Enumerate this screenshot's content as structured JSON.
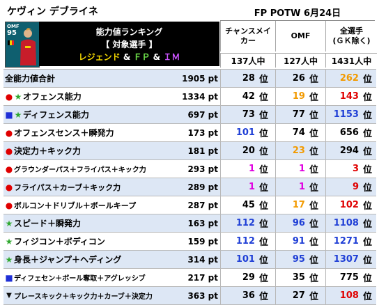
{
  "player_name": "ケヴィン デブライネ",
  "event_title": "FP POTW 6月24日",
  "card": {
    "position": "OMF",
    "overall": "95",
    "flag": "belgium-flag"
  },
  "panel": {
    "line1": "能力値ランキング",
    "line2": "【 対象選手 】",
    "line3_legend": "レジェンド",
    "line3_amp1": " & ",
    "line3_fp": "ＦＰ",
    "line3_amp2": " & ",
    "line3_im": "ＩＭ"
  },
  "columns": [
    {
      "header": "チャンスメイ\nカー",
      "count": "137人中"
    },
    {
      "header": "OMF",
      "count": "127人中"
    },
    {
      "header": "全選手\n(ＧＫ除く)",
      "count": "1431人中"
    }
  ],
  "rank_unit": "位",
  "rows": [
    {
      "marker": "",
      "label": "全能力値合計",
      "points": "1905 pt",
      "ranks": [
        "28",
        "26",
        "262"
      ],
      "colors": [
        "black",
        "black",
        "orange"
      ]
    },
    {
      "marker": "circle-star",
      "label": "オフェンス能力",
      "points": "1334 pt",
      "ranks": [
        "42",
        "19",
        "143"
      ],
      "colors": [
        "black",
        "orange",
        "red"
      ]
    },
    {
      "marker": "square-star",
      "label": "ディフェンス能力",
      "points": "697 pt",
      "ranks": [
        "73",
        "77",
        "1153"
      ],
      "colors": [
        "black",
        "black",
        "blue"
      ]
    },
    {
      "marker": "circle",
      "label": "オフェンスセンス＋瞬発力",
      "points": "173 pt",
      "ranks": [
        "101",
        "74",
        "656"
      ],
      "colors": [
        "blue",
        "black",
        "black"
      ]
    },
    {
      "marker": "circle",
      "label": "決定力＋キック力",
      "points": "181 pt",
      "ranks": [
        "20",
        "23",
        "294"
      ],
      "colors": [
        "black",
        "orange",
        "black"
      ]
    },
    {
      "marker": "circle",
      "label": "グラウンダーパス＋フライパス＋キック力",
      "points": "293 pt",
      "ranks": [
        "1",
        "1",
        "3"
      ],
      "colors": [
        "magenta",
        "magenta",
        "red"
      ]
    },
    {
      "marker": "circle",
      "label": "フライパス＋カーブ＋キック力",
      "points": "289 pt",
      "ranks": [
        "1",
        "1",
        "9"
      ],
      "colors": [
        "magenta",
        "magenta",
        "red"
      ]
    },
    {
      "marker": "circle",
      "label": "ボルコン＋ドリブル＋ボールキープ",
      "points": "287 pt",
      "ranks": [
        "45",
        "17",
        "102"
      ],
      "colors": [
        "black",
        "orange",
        "red"
      ]
    },
    {
      "marker": "star",
      "label": "スピード＋瞬発力",
      "points": "163 pt",
      "ranks": [
        "112",
        "96",
        "1108"
      ],
      "colors": [
        "blue",
        "blue",
        "blue"
      ]
    },
    {
      "marker": "star",
      "label": "フィジコン＋ボディコン",
      "points": "159 pt",
      "ranks": [
        "112",
        "91",
        "1271"
      ],
      "colors": [
        "blue",
        "blue",
        "blue"
      ]
    },
    {
      "marker": "star",
      "label": "身長＋ジャンプ＋ヘディング",
      "points": "314 pt",
      "ranks": [
        "101",
        "95",
        "1307"
      ],
      "colors": [
        "blue",
        "blue",
        "blue"
      ]
    },
    {
      "marker": "square",
      "label": "ディフェセン＋ボール奪取＋アグレッシブ",
      "points": "217 pt",
      "ranks": [
        "29",
        "35",
        "775"
      ],
      "colors": [
        "black",
        "black",
        "black"
      ]
    },
    {
      "marker": "triangle",
      "label": "プレースキック＋キック力＋カーブ＋決定力",
      "points": "363 pt",
      "ranks": [
        "36",
        "27",
        "108"
      ],
      "colors": [
        "black",
        "black",
        "red"
      ]
    }
  ],
  "marker_glyphs": {
    "circle": "●",
    "star": "★",
    "square": "■",
    "triangle": "▼"
  }
}
